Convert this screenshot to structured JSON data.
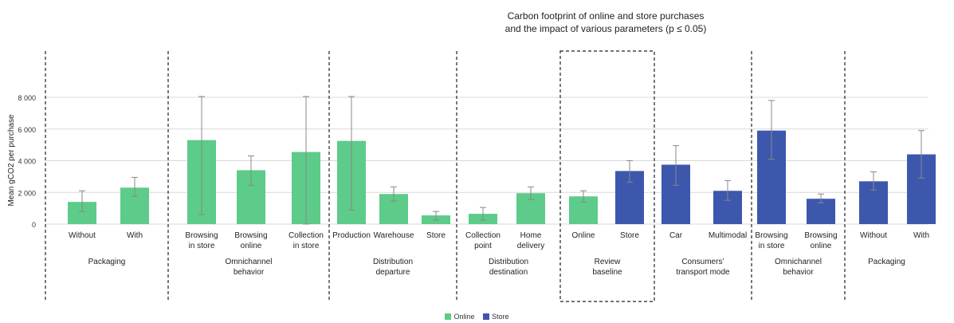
{
  "colors": {
    "online": "#5DCB8A",
    "store": "#3D57AD",
    "error_bar": "#888888",
    "grid": "#d9d9d9"
  },
  "chart_data": {
    "type": "bar",
    "title_line1": "Carbon footprint of online and store purchases",
    "title_line2": "and the impact of various parameters (p ≤ 0.05)",
    "ylabel": "Mean gCO2 per purchase",
    "ylim": [
      0,
      8000
    ],
    "yticks": [
      "0",
      "2 000",
      "4 000",
      "6 000",
      "8 000"
    ],
    "ytick_values": [
      0,
      2000,
      4000,
      6000,
      8000
    ],
    "grid": true,
    "legend_position": "bottom-center",
    "series": [
      {
        "name": "Online",
        "color": "#5DCB8A"
      },
      {
        "name": "Store",
        "color": "#3D57AD"
      }
    ],
    "groups": [
      {
        "label": [
          "Packaging"
        ],
        "boxed": false,
        "bars": [
          {
            "label": [
              "Without"
            ],
            "value": 1400,
            "err_low": 800,
            "err_high": 2100,
            "series": "Online"
          },
          {
            "label": [
              "With"
            ],
            "value": 2300,
            "err_low": 1750,
            "err_high": 2950,
            "series": "Online"
          }
        ]
      },
      {
        "label": [
          "Omnichannel",
          "behavior"
        ],
        "boxed": false,
        "bars": [
          {
            "label": [
              "Browsing",
              "in store"
            ],
            "value": 5300,
            "err_low": 600,
            "err_high": 8050,
            "series": "Online"
          },
          {
            "label": [
              "Browsing",
              "online"
            ],
            "value": 3400,
            "err_low": 2450,
            "err_high": 4300,
            "series": "Online"
          },
          {
            "label": [
              "Collection",
              "in store"
            ],
            "value": 4550,
            "err_low": 0,
            "err_high": 8050,
            "series": "Online"
          }
        ]
      },
      {
        "label": [
          "Distribution",
          "departure"
        ],
        "boxed": false,
        "bars": [
          {
            "label": [
              "Production"
            ],
            "value": 5250,
            "err_low": 900,
            "err_high": 8050,
            "series": "Online"
          },
          {
            "label": [
              "Warehouse"
            ],
            "value": 1900,
            "err_low": 1450,
            "err_high": 2350,
            "series": "Online"
          },
          {
            "label": [
              "Store"
            ],
            "value": 550,
            "err_low": 250,
            "err_high": 800,
            "series": "Online"
          }
        ]
      },
      {
        "label": [
          "Distribution",
          "destination"
        ],
        "boxed": false,
        "bars": [
          {
            "label": [
              "Collection",
              "point"
            ],
            "value": 650,
            "err_low": 250,
            "err_high": 1050,
            "series": "Online"
          },
          {
            "label": [
              "Home",
              "delivery"
            ],
            "value": 1950,
            "err_low": 1550,
            "err_high": 2350,
            "series": "Online"
          }
        ]
      },
      {
        "label": [
          "Review",
          "baseline"
        ],
        "boxed": true,
        "bars": [
          {
            "label": [
              "Online"
            ],
            "value": 1750,
            "err_low": 1400,
            "err_high": 2100,
            "series": "Online"
          },
          {
            "label": [
              "Store"
            ],
            "value": 3350,
            "err_low": 2650,
            "err_high": 4000,
            "series": "Store"
          }
        ]
      },
      {
        "label": [
          "Consumers’",
          "transport mode"
        ],
        "boxed": false,
        "bars": [
          {
            "label": [
              "Car"
            ],
            "value": 3750,
            "err_low": 2450,
            "err_high": 4950,
            "series": "Store"
          },
          {
            "label": [
              "Multimodal"
            ],
            "value": 2100,
            "err_low": 1500,
            "err_high": 2750,
            "series": "Store"
          }
        ]
      },
      {
        "label": [
          "Omnichannel",
          "behavior"
        ],
        "boxed": false,
        "bars": [
          {
            "label": [
              "Browsing",
              "in store"
            ],
            "value": 5900,
            "err_low": 4100,
            "err_high": 7800,
            "series": "Store"
          },
          {
            "label": [
              "Browsing",
              "online"
            ],
            "value": 1600,
            "err_low": 1350,
            "err_high": 1900,
            "series": "Store"
          }
        ]
      },
      {
        "label": [
          "Packaging"
        ],
        "boxed": false,
        "bars": [
          {
            "label": [
              "Without"
            ],
            "value": 2700,
            "err_low": 2150,
            "err_high": 3300,
            "series": "Store"
          },
          {
            "label": [
              "With"
            ],
            "value": 4400,
            "err_low": 2900,
            "err_high": 5900,
            "series": "Store"
          }
        ]
      }
    ]
  }
}
